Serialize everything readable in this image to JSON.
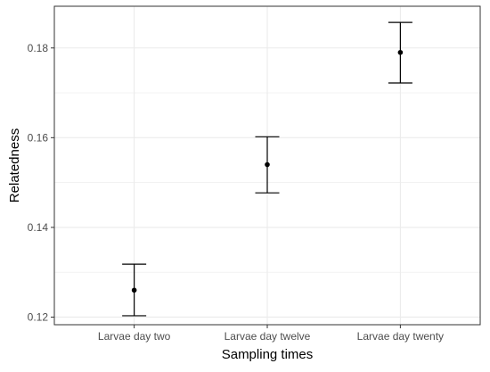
{
  "chart_data": {
    "type": "scatter",
    "title": "",
    "xlabel": "Sampling times",
    "ylabel": "Relatedness",
    "categories": [
      "Larvae day two",
      "Larvae day twelve",
      "Larvae day twenty"
    ],
    "series": [
      {
        "values": [
          0.126,
          0.154,
          0.179
        ],
        "lower": [
          0.1203,
          0.1477,
          0.1722
        ],
        "upper": [
          0.1318,
          0.1602,
          0.1857
        ]
      }
    ],
    "ylim": [
      0.1183,
      0.1893
    ],
    "yticks": [
      0.12,
      0.14,
      0.16,
      0.18
    ],
    "ytick_labels": [
      "0.12",
      "0.14",
      "0.16",
      "0.18"
    ],
    "error_bars": true,
    "grid": true,
    "legend": "none",
    "colors": {
      "point": "#000000",
      "errorbar": "#000000",
      "grid": "#ebebeb",
      "panel_border": "#333333",
      "tick_text": "#4d4d4d"
    }
  }
}
